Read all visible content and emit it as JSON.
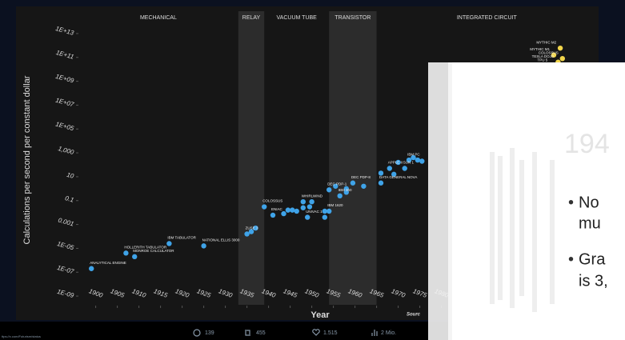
{
  "chart_data": {
    "type": "scatter",
    "y_label": "Calculations per second per constant dollar",
    "x_label": "Year",
    "source": "Sourc",
    "log_scale_y": true,
    "color": "#3fa3e8",
    "highlight_color": "#f2d64b",
    "xlim": [
      1896,
      2016
    ],
    "ylim": [
      1e-10,
      100000000000000.0
    ],
    "xticks": [
      1900,
      1905,
      1910,
      1915,
      1920,
      1925,
      1930,
      1935,
      1940,
      1945,
      1950,
      1955,
      1960,
      1965,
      1970,
      1975,
      1980
    ],
    "yticks": [
      {
        "value": 10000000000000.0,
        "label": "1E+13"
      },
      {
        "value": 100000000000.0,
        "label": "1E+11"
      },
      {
        "value": 1000000000.0,
        "label": "1E+09"
      },
      {
        "value": 10000000.0,
        "label": "1E+07"
      },
      {
        "value": 100000.0,
        "label": "1E+05"
      },
      {
        "value": 1000,
        "label": "1,000"
      },
      10,
      0.1,
      0.001,
      {
        "value": 1e-05,
        "label": "1E-05"
      },
      {
        "value": 1e-07,
        "label": "1E-07"
      },
      {
        "value": 1e-09,
        "label": "1E-09"
      }
    ],
    "eras": [
      {
        "name": "MECHANICAL",
        "start": 1896,
        "end": 1933,
        "shaded": false
      },
      {
        "name": "RELAY",
        "start": 1933,
        "end": 1939,
        "shaded": true
      },
      {
        "name": "VACUUM TUBE",
        "start": 1939,
        "end": 1954,
        "shaded": false
      },
      {
        "name": "TRANSISTOR",
        "start": 1954,
        "end": 1965,
        "shaded": true
      },
      {
        "name": "INTEGRATED CIRCUIT",
        "start": 1965,
        "end": 2016,
        "shaded": false
      }
    ],
    "series": [
      {
        "name": "Computers",
        "x": [
          1899,
          1907,
          1909,
          1917,
          1925,
          1935,
          1936,
          1937,
          1939,
          1941,
          1943.5,
          1944.5,
          1945.5,
          1946.5,
          1948,
          1948,
          1949,
          1949.5,
          1950,
          1953,
          1953,
          1954,
          1954,
          1955.5,
          1956.5,
          1958,
          1959.5,
          1958,
          1962,
          1966,
          1966,
          1968,
          1969,
          1970,
          1971.5,
          1972.5,
          1973.5,
          1974.5,
          1975.5
        ],
        "values": [
          2e-07,
          4e-06,
          2e-06,
          2.5e-05,
          1.6e-05,
          0.00016,
          0.00025,
          0.0005,
          0.03,
          0.006,
          0.008,
          0.016,
          0.016,
          0.013,
          0.025,
          0.08,
          0.004,
          0.03,
          0.08,
          0.004,
          0.013,
          0.013,
          0.8,
          1.6,
          0.25,
          0.5,
          3,
          1,
          1.6,
          3,
          20,
          50,
          16,
          160,
          50,
          250,
          400,
          250,
          200
        ]
      },
      {
        "name": "AI chips",
        "x": [
          2007.5,
          2006,
          2008,
          2007,
          2005.5
        ],
        "values": [
          600000000000.0,
          160000000000.0,
          80000000000.0,
          40000000000.0,
          20000000000.0
        ]
      }
    ],
    "annotations": [
      {
        "text": "ANALYTICAL ENGINE",
        "series": 0,
        "point": 0
      },
      {
        "text": "HOLLERITH TABULATOR",
        "series": 0,
        "point": 1
      },
      {
        "text": "MONROE CALCULATOR",
        "series": 0,
        "point": 2
      },
      {
        "text": "IBM TABULATOR",
        "series": 0,
        "point": 3
      },
      {
        "text": "NATIONAL ELLIS 3000",
        "series": 0,
        "point": 4
      },
      {
        "text": "ZUSE 3",
        "series": 0,
        "point": 5
      },
      {
        "text": "COLOSSUS",
        "series": 0,
        "point": 8
      },
      {
        "text": "ENIAC",
        "series": 0,
        "point": 9
      },
      {
        "text": "WHIRLWIND",
        "series": 0,
        "point": 15
      },
      {
        "text": "UNIVAC 1",
        "series": 0,
        "point": 16
      },
      {
        "text": "IBM 1620",
        "series": 0,
        "point": 21
      },
      {
        "text": "DEC PDP-1",
        "series": 0,
        "point": 22
      },
      {
        "text": "DEC PDP-8",
        "series": 0,
        "point": 26
      },
      {
        "text": "IBM 360",
        "series": 0,
        "point": 24
      },
      {
        "text": "DATA GENERAL NOVA",
        "series": 0,
        "point": 29
      },
      {
        "text": "APPLE II",
        "series": 0,
        "point": 31
      },
      {
        "text": "IBM PC",
        "series": 0,
        "point": 35
      },
      {
        "text": "SUN 1",
        "series": 0,
        "point": 34
      },
      {
        "text": "MYTHIC M2",
        "series": 1,
        "point": 0
      },
      {
        "text": "MYTHIC M1",
        "series": 1,
        "point": 1
      },
      {
        "text": "COLOSSUS",
        "series": 1,
        "point": 2
      },
      {
        "text": "TESLA DOJO",
        "series": 1,
        "point": 3
      },
      {
        "text": "TPU 5",
        "series": 1,
        "point": 4
      }
    ]
  },
  "tweet": {
    "replies": "139",
    "reposts": "455",
    "likes": "1.515",
    "views": "2 Mio.",
    "url": "ttps://x.com/Futurism/status"
  },
  "slide": {
    "year_faded": "194",
    "bullets": [
      "No",
      "mu",
      "Gra",
      "is 3,"
    ]
  }
}
